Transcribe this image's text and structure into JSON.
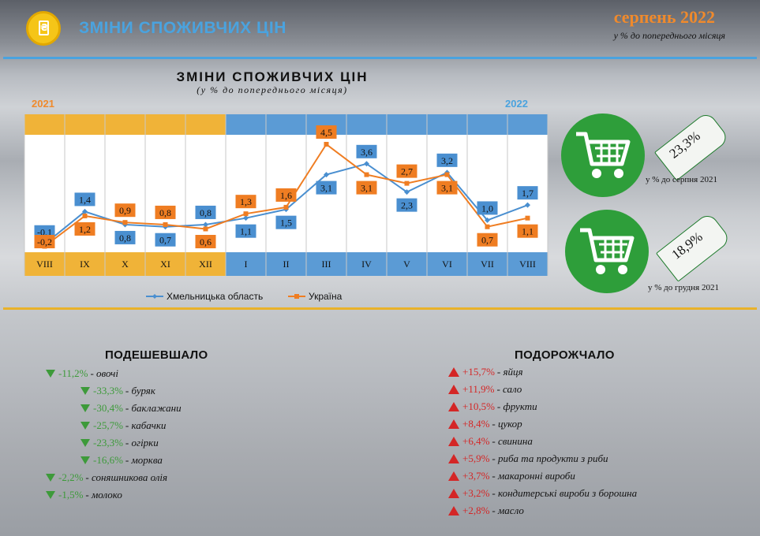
{
  "header": {
    "title": "ЗМІНИ СПОЖИВЧИХ ЦІН",
    "period": "серпень 2022",
    "period_sub": "у % до попереднього місяця",
    "coin_glyph": "₴"
  },
  "chart_title": "ЗМІНИ СПОЖИВЧИХ ЦІН",
  "chart_subtitle": "(у % до попереднього місяця)",
  "year_left": "2021",
  "year_right": "2022",
  "chart_data": {
    "type": "line",
    "categories": [
      "VIII",
      "IX",
      "X",
      "XI",
      "XII",
      "I",
      "II",
      "III",
      "IV",
      "V",
      "VI",
      "VII",
      "VIII"
    ],
    "series": [
      {
        "name": "Хмельницька область",
        "color": "#4a8fd0",
        "values": [
          -0.1,
          1.4,
          0.8,
          0.7,
          0.8,
          1.1,
          1.5,
          3.1,
          3.6,
          2.3,
          3.2,
          1.0,
          1.7
        ],
        "labels": [
          "-0,1",
          "1,4",
          "0,8",
          "0,7",
          "0,8",
          "1,1",
          "1,5",
          "3,1",
          "3,6",
          "2,3",
          "3,2",
          "1,0",
          "1,7"
        ]
      },
      {
        "name": "Україна",
        "color": "#ef7d22",
        "values": [
          -0.2,
          1.2,
          0.9,
          0.8,
          0.6,
          1.3,
          1.6,
          4.5,
          3.1,
          2.7,
          3.1,
          0.7,
          1.1
        ],
        "labels": [
          "-0,2",
          "1,2",
          "0,9",
          "0,8",
          "0,6",
          "1,3",
          "1,6",
          "4,5",
          "3,1",
          "2,7",
          "3,1",
          "0,7",
          "1,1"
        ]
      }
    ],
    "ylim": [
      -0.4,
      4.9
    ],
    "legend": "bottom",
    "colors": {
      "y2021": "#f0b338",
      "y2022": "#5b9bd5"
    }
  },
  "carts": [
    {
      "value": "23,3%",
      "caption": "у % до серпня 2021"
    },
    {
      "value": "18,9%",
      "caption": "у % до грудня 2021"
    }
  ],
  "cheaper": {
    "title": "ПОДЕШЕВШАЛО",
    "items": [
      {
        "pct": "-11,2%",
        "label": "- овочі"
      },
      {
        "pct": "-33,3%",
        "label": "- буряк"
      },
      {
        "pct": "-30,4%",
        "label": "- баклажани"
      },
      {
        "pct": "-25,7%",
        "label": "- кабачки"
      },
      {
        "pct": "-23,3%",
        "label": "- огірки"
      },
      {
        "pct": "-16,6%",
        "label": "- морква"
      },
      {
        "pct": "-2,2%",
        "label": "- соняшникова олія"
      },
      {
        "pct": "-1,5%",
        "label": "- молоко"
      }
    ]
  },
  "pricier": {
    "title": "ПОДОРОЖЧАЛО",
    "items": [
      {
        "pct": "+15,7%",
        "label": "- яйця"
      },
      {
        "pct": "+11,9%",
        "label": "- сало"
      },
      {
        "pct": "+10,5%",
        "label": "- фрукти"
      },
      {
        "pct": "+8,4%",
        "label": "- цукор"
      },
      {
        "pct": "+6,4%",
        "label": "- свинина"
      },
      {
        "pct": "+5,9%",
        "label": "- риба та продукти з риби"
      },
      {
        "pct": "+3,7%",
        "label": "- макаронні вироби"
      },
      {
        "pct": "+3,2%",
        "label": "- кондитерські вироби з борошна"
      },
      {
        "pct": "+2,8%",
        "label": "- масло"
      }
    ]
  },
  "colors": {
    "accent_blue": "#4aa3df",
    "accent_orange": "#f08a2c",
    "green": "#3d9a3a",
    "red": "#d42626"
  }
}
